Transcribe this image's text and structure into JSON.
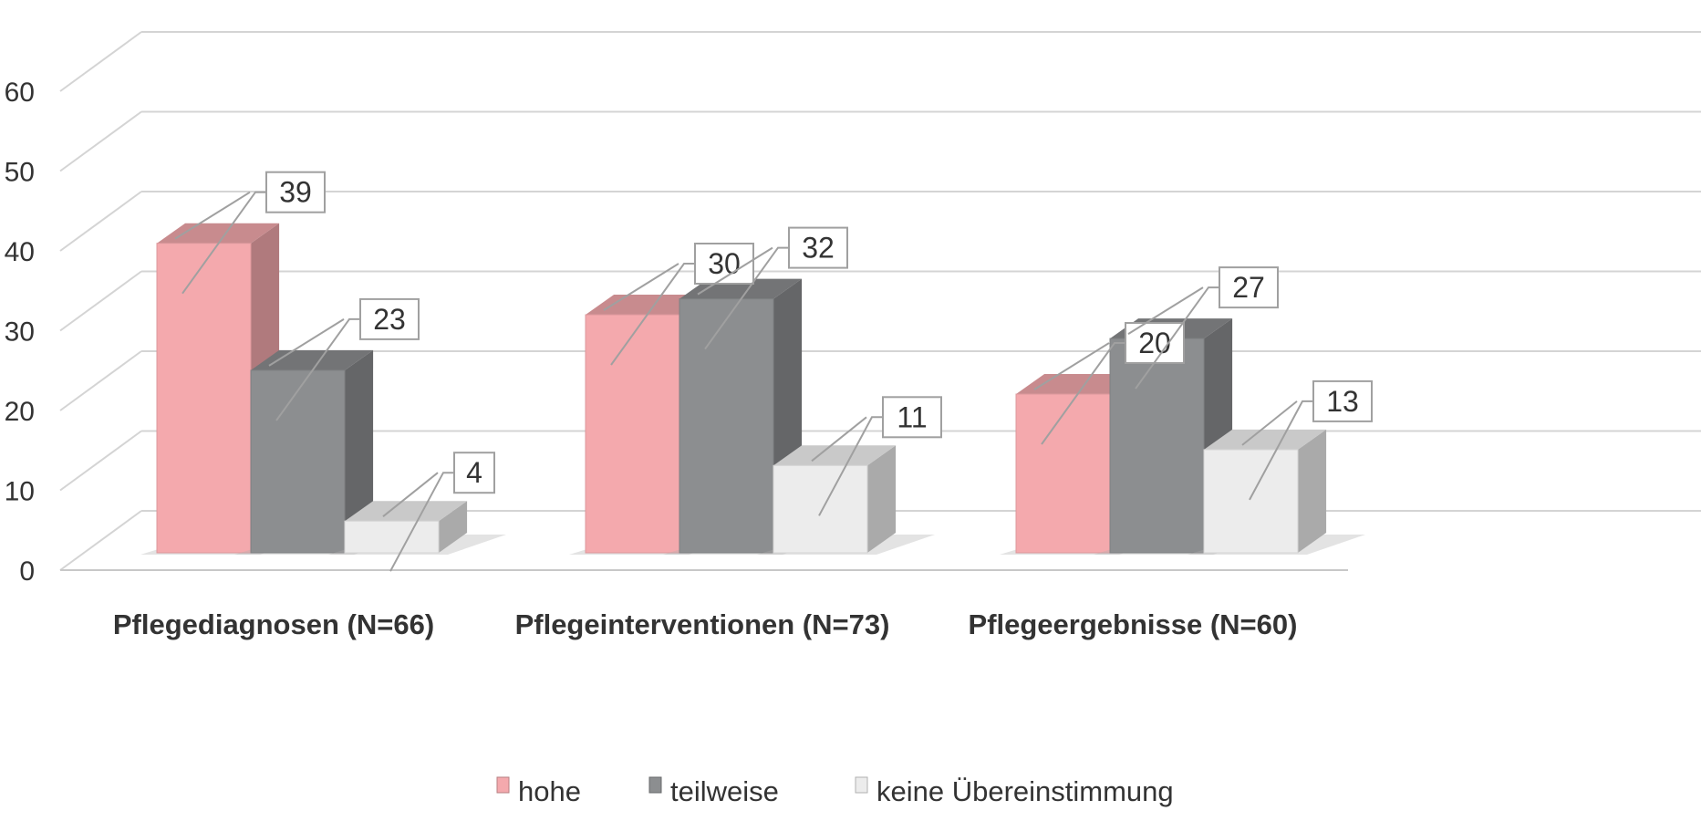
{
  "chart_data": {
    "type": "bar",
    "title": "",
    "xlabel": "",
    "ylabel": "",
    "ylim": [
      0,
      60
    ],
    "yticks": [
      0,
      10,
      20,
      30,
      40,
      50,
      60
    ],
    "grid": true,
    "legend_position": "bottom",
    "categories": [
      "Pflegediagnosen (N=66)",
      "Pflegeinterventionen (N=73)",
      "Pflegeergebnisse (N=60)"
    ],
    "series": [
      {
        "name": "hohe",
        "values": [
          39,
          30,
          20
        ],
        "color": "#f4a9ad"
      },
      {
        "name": "teilweise",
        "values": [
          23,
          32,
          27
        ],
        "color": "#8c8e90"
      },
      {
        "name": "keine Übereinstimmung",
        "values": [
          4,
          11,
          13
        ],
        "color": "#ececec"
      }
    ]
  }
}
